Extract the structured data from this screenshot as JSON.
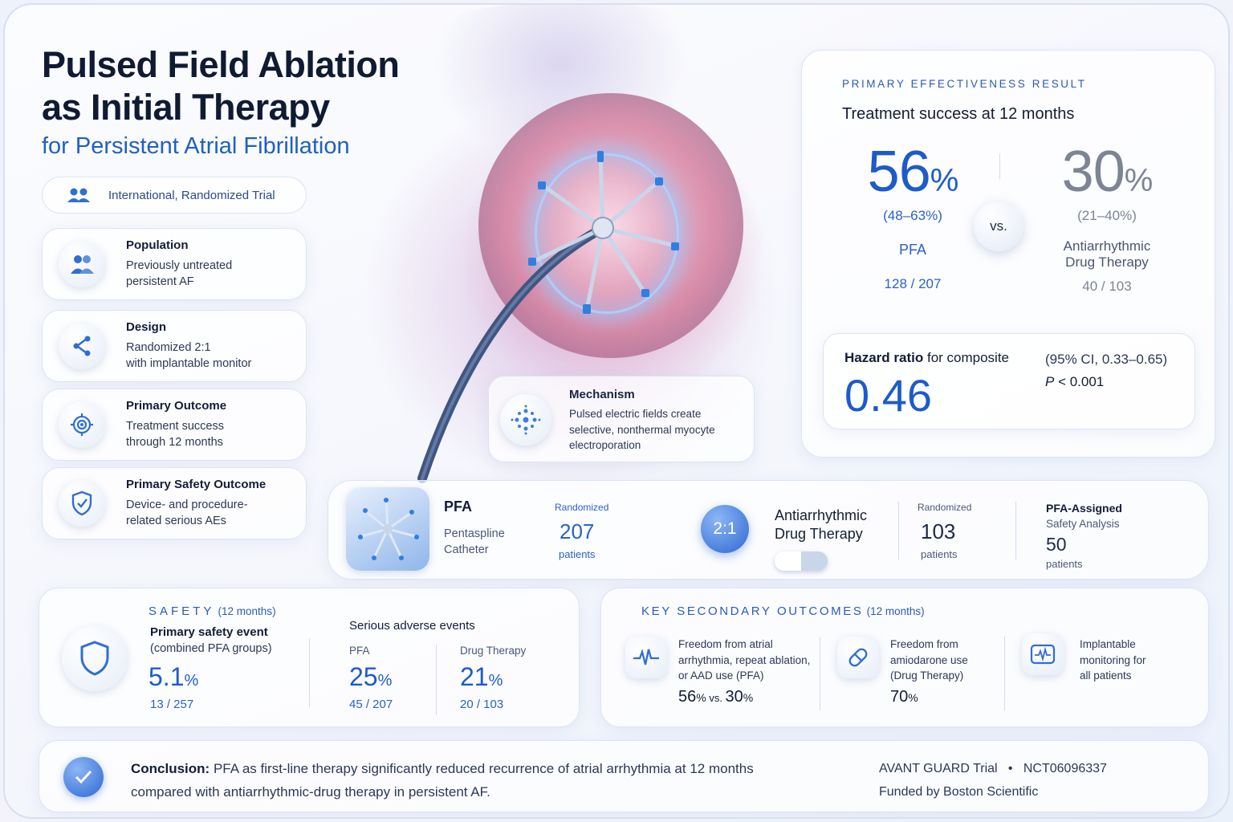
{
  "title": {
    "line1": "Pulsed Field Ablation",
    "line2": "as Initial Therapy",
    "subtitle": "for Persistent Atrial Fibrillation"
  },
  "trial_type": "International, Randomized Trial",
  "info_cards": [
    {
      "title": "Population",
      "line1": "Previously untreated",
      "line2": "persistent AF"
    },
    {
      "title": "Design",
      "line1": "Randomized 2:1",
      "line2": "with implantable monitor"
    },
    {
      "title": "Primary Outcome",
      "line1": "Treatment success",
      "line2": "through 12 months"
    },
    {
      "title": "Primary Safety Outcome",
      "line1": "Device- and procedure-",
      "line2": "related serious AEs"
    }
  ],
  "mechanism": {
    "title": "Mechanism",
    "line1": "Pulsed electric fields create",
    "line2": "selective, nonthermal myocyte",
    "line3": "electroporation"
  },
  "primary": {
    "label": "PRIMARY EFFECTIVENESS RESULT",
    "heading": "Treatment success at 12 months",
    "pfa": {
      "value": "56",
      "unit": "%",
      "ci": "(48–63%)",
      "name": "PFA",
      "count": "128 / 207"
    },
    "vs": "vs.",
    "drug": {
      "value": "30",
      "unit": "%",
      "ci": "(21–40%)",
      "name1": "Antiarrhythmic",
      "name2": "Drug Therapy",
      "count": "40 / 103"
    },
    "hazard": {
      "label_bold": "Hazard ratio",
      "label_rest": " for composite",
      "value": "0.46",
      "ci": "(95% CI, 0.33–0.65)",
      "p_label": "P",
      "p_value": " < 0.001"
    }
  },
  "enrollment": {
    "pfa": {
      "name": "PFA",
      "line1": "Pentaspline",
      "line2": "Catheter",
      "rand_label": "Randomized",
      "count": "207",
      "unit": "patients"
    },
    "ratio": "2:1",
    "drug": {
      "name1": "Antiarrhythmic",
      "name2": "Drug Therapy",
      "rand_label": "Randomized",
      "count": "103",
      "unit": "patients"
    },
    "safety": {
      "title": "PFA-Assigned",
      "line": "Safety Analysis",
      "count": "50",
      "unit": "patients"
    }
  },
  "safety": {
    "label": "SAFETY",
    "period": "(12 months)",
    "primary_title": "Primary safety event",
    "primary_sub": "(combined PFA groups)",
    "primary_value": "5.1",
    "primary_unit": "%",
    "primary_count": "13 / 257",
    "sae_title": "Serious adverse events",
    "pfa_label": "PFA",
    "pfa_value": "25",
    "pfa_unit": "%",
    "pfa_count": "45 / 207",
    "drug_label": "Drug Therapy",
    "drug_value": "21",
    "drug_unit": "%",
    "drug_count": "20 / 103"
  },
  "secondary": {
    "label": "KEY SECONDARY OUTCOMES",
    "period": "(12 months)",
    "items": [
      {
        "line1": "Freedom from atrial",
        "line2": "arrhythmia, repeat ablation,",
        "line3": "or AAD use (PFA)",
        "v1": "56",
        "u1": "%",
        "vs": " vs. ",
        "v2": "30",
        "u2": "%"
      },
      {
        "line1": "Freedom from",
        "line2": "amiodarone use",
        "line3": "(Drug Therapy)",
        "v1": "70",
        "u1": "%"
      },
      {
        "line1": "Implantable",
        "line2": "monitoring for",
        "line3": "all patients"
      }
    ]
  },
  "conclusion": {
    "bold": "Conclusion:",
    "line1": " PFA as first-line therapy significantly reduced recurrence of atrial arrhythmia at 12 months",
    "line2": "compared with antiarrhythmic-drug therapy in persistent AF.",
    "trial": "AVANT GUARD Trial",
    "sep": "•",
    "nct": "NCT06096337",
    "funding": "Funded by Boston Scientific"
  },
  "colors": {
    "accent": "#1d5bc8",
    "muted_number": "#7d8494",
    "dark": "#131d36"
  }
}
